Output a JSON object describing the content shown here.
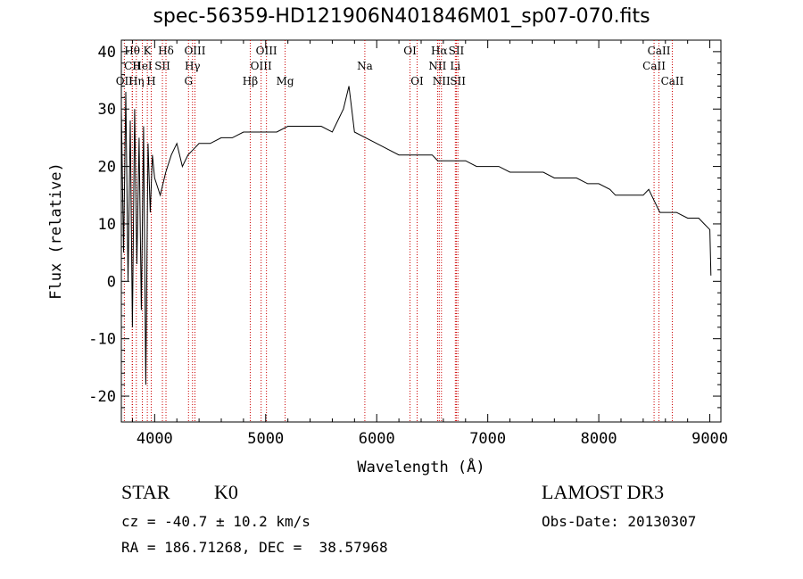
{
  "chart_data": {
    "type": "line",
    "title": "spec-56359-HD121906N401846M01_sp07-070.fits",
    "xlabel": "Wavelength (Å)",
    "ylabel": "Flux (relative)",
    "xlim": [
      3700,
      9100
    ],
    "ylim": [
      -24.5,
      42
    ],
    "xticks": [
      4000,
      5000,
      6000,
      7000,
      8000,
      9000
    ],
    "yticks": [
      -20,
      -10,
      0,
      10,
      20,
      30,
      40
    ],
    "series": [
      {
        "name": "flux",
        "x": [
          3700,
          3720,
          3740,
          3760,
          3780,
          3800,
          3820,
          3840,
          3860,
          3880,
          3900,
          3920,
          3940,
          3960,
          3980,
          4000,
          4050,
          4100,
          4150,
          4200,
          4250,
          4300,
          4350,
          4400,
          4500,
          4600,
          4700,
          4800,
          4900,
          5000,
          5100,
          5200,
          5300,
          5400,
          5500,
          5600,
          5700,
          5750,
          5800,
          5900,
          6000,
          6100,
          6200,
          6300,
          6400,
          6500,
          6550,
          6600,
          6700,
          6800,
          6900,
          7000,
          7100,
          7200,
          7300,
          7400,
          7500,
          7600,
          7700,
          7800,
          7900,
          8000,
          8100,
          8150,
          8200,
          8300,
          8400,
          8450,
          8500,
          8550,
          8600,
          8700,
          8800,
          8900,
          8950,
          9000,
          9010
        ],
        "values": [
          30,
          5,
          33,
          0,
          28,
          -8,
          30,
          3,
          25,
          -5,
          27,
          -18,
          24,
          12,
          22,
          18,
          15,
          19,
          22,
          24,
          20,
          22,
          23,
          24,
          24,
          25,
          25,
          26,
          26,
          26,
          26,
          27,
          27,
          27,
          27,
          26,
          30,
          34,
          26,
          25,
          24,
          23,
          22,
          22,
          22,
          22,
          21,
          21,
          21,
          21,
          20,
          20,
          20,
          19,
          19,
          19,
          19,
          18,
          18,
          18,
          17,
          17,
          16,
          15,
          15,
          15,
          15,
          16,
          14,
          12,
          12,
          12,
          11,
          11,
          10,
          9,
          1
        ]
      }
    ],
    "lines": [
      {
        "name": "Hθ",
        "x": 3798,
        "row": 1
      },
      {
        "name": "CII",
        "x": 3800,
        "row": 2
      },
      {
        "name": "OII",
        "x": 3727,
        "row": 3
      },
      {
        "name": "Hη",
        "x": 3835,
        "row": 3
      },
      {
        "name": "K",
        "x": 3934,
        "row": 1
      },
      {
        "name": "HeI",
        "x": 3889,
        "row": 2
      },
      {
        "name": "H",
        "x": 3969,
        "row": 3
      },
      {
        "name": "SII",
        "x": 4070,
        "row": 2
      },
      {
        "name": "Hδ",
        "x": 4102,
        "row": 1
      },
      {
        "name": "OIII",
        "x": 4363,
        "row": 1
      },
      {
        "name": "Hγ",
        "x": 4341,
        "row": 2
      },
      {
        "name": "G",
        "x": 4305,
        "row": 3
      },
      {
        "name": "Hβ",
        "x": 4861,
        "row": 3
      },
      {
        "name": "OIII",
        "x": 5007,
        "row": 1
      },
      {
        "name": "OIII",
        "x": 4959,
        "row": 2
      },
      {
        "name": "Mg",
        "x": 5175,
        "row": 3
      },
      {
        "name": "Na",
        "x": 5893,
        "row": 2
      },
      {
        "name": "OI",
        "x": 6300,
        "row": 1
      },
      {
        "name": "OI",
        "x": 6364,
        "row": 3
      },
      {
        "name": "Hα",
        "x": 6563,
        "row": 1
      },
      {
        "name": "NII",
        "x": 6548,
        "row": 2
      },
      {
        "name": "NII",
        "x": 6583,
        "row": 3
      },
      {
        "name": "SII",
        "x": 6717,
        "row": 1
      },
      {
        "name": "Li",
        "x": 6708,
        "row": 2
      },
      {
        "name": "SII",
        "x": 6731,
        "row": 3
      },
      {
        "name": "CaII",
        "x": 8542,
        "row": 1
      },
      {
        "name": "CaII",
        "x": 8498,
        "row": 2
      },
      {
        "name": "CaII",
        "x": 8662,
        "row": 3
      }
    ],
    "line_color": "#cc0000"
  },
  "info": {
    "class": "STAR",
    "subclass": "K0",
    "survey": "LAMOST DR3",
    "cz": "cz = -40.7 ± 10.2 km/s",
    "obs_date": "Obs-Date: 20130307",
    "radec": "RA = 186.71268, DEC =  38.57968"
  }
}
